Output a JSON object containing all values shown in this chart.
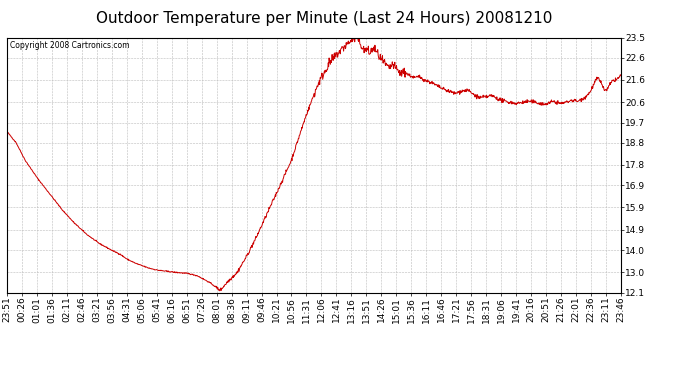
{
  "title": "Outdoor Temperature per Minute (Last 24 Hours) 20081210",
  "copyright": "Copyright 2008 Cartronics.com",
  "line_color": "#cc0000",
  "background_color": "#ffffff",
  "grid_color": "#bbbbbb",
  "ylim": [
    12.1,
    23.5
  ],
  "yticks": [
    12.1,
    13.0,
    14.0,
    14.9,
    15.9,
    16.9,
    17.8,
    18.8,
    19.7,
    20.6,
    21.6,
    22.6,
    23.5
  ],
  "x_tick_labels": [
    "23:51",
    "00:26",
    "01:01",
    "01:36",
    "02:11",
    "02:46",
    "03:21",
    "03:56",
    "04:31",
    "05:06",
    "05:41",
    "06:16",
    "06:51",
    "07:26",
    "08:01",
    "08:36",
    "09:11",
    "09:46",
    "10:21",
    "10:56",
    "11:31",
    "12:06",
    "12:41",
    "13:16",
    "13:51",
    "14:26",
    "15:01",
    "15:36",
    "16:11",
    "16:46",
    "17:21",
    "17:56",
    "18:31",
    "19:06",
    "19:41",
    "20:16",
    "20:51",
    "21:26",
    "22:01",
    "22:36",
    "23:11",
    "23:46"
  ],
  "title_fontsize": 11,
  "tick_fontsize": 6.5,
  "control_points": [
    [
      0.0,
      19.3
    ],
    [
      0.015,
      18.8
    ],
    [
      0.03,
      18.0
    ],
    [
      0.05,
      17.2
    ],
    [
      0.07,
      16.5
    ],
    [
      0.09,
      15.8
    ],
    [
      0.11,
      15.2
    ],
    [
      0.13,
      14.7
    ],
    [
      0.15,
      14.3
    ],
    [
      0.17,
      14.0
    ],
    [
      0.185,
      13.8
    ],
    [
      0.195,
      13.6
    ],
    [
      0.21,
      13.4
    ],
    [
      0.23,
      13.2
    ],
    [
      0.245,
      13.1
    ],
    [
      0.26,
      13.05
    ],
    [
      0.275,
      13.0
    ],
    [
      0.295,
      12.95
    ],
    [
      0.31,
      12.85
    ],
    [
      0.32,
      12.7
    ],
    [
      0.33,
      12.55
    ],
    [
      0.335,
      12.45
    ],
    [
      0.34,
      12.35
    ],
    [
      0.344,
      12.25
    ],
    [
      0.348,
      12.22
    ],
    [
      0.352,
      12.35
    ],
    [
      0.36,
      12.6
    ],
    [
      0.375,
      13.0
    ],
    [
      0.39,
      13.7
    ],
    [
      0.405,
      14.5
    ],
    [
      0.42,
      15.4
    ],
    [
      0.435,
      16.3
    ],
    [
      0.45,
      17.2
    ],
    [
      0.463,
      18.0
    ],
    [
      0.475,
      19.0
    ],
    [
      0.487,
      20.0
    ],
    [
      0.498,
      20.8
    ],
    [
      0.508,
      21.5
    ],
    [
      0.516,
      21.9
    ],
    [
      0.524,
      22.3
    ],
    [
      0.53,
      22.5
    ],
    [
      0.536,
      22.7
    ],
    [
      0.541,
      22.85
    ],
    [
      0.546,
      23.0
    ],
    [
      0.55,
      23.1
    ],
    [
      0.554,
      23.2
    ],
    [
      0.558,
      23.3
    ],
    [
      0.562,
      23.4
    ],
    [
      0.566,
      23.45
    ],
    [
      0.57,
      23.5
    ],
    [
      0.574,
      23.3
    ],
    [
      0.578,
      23.1
    ],
    [
      0.582,
      22.9
    ],
    [
      0.586,
      23.0
    ],
    [
      0.59,
      22.8
    ],
    [
      0.594,
      22.9
    ],
    [
      0.598,
      23.05
    ],
    [
      0.602,
      22.85
    ],
    [
      0.606,
      22.65
    ],
    [
      0.61,
      22.5
    ],
    [
      0.616,
      22.3
    ],
    [
      0.622,
      22.1
    ],
    [
      0.628,
      22.3
    ],
    [
      0.634,
      22.1
    ],
    [
      0.64,
      21.9
    ],
    [
      0.648,
      21.95
    ],
    [
      0.656,
      21.8
    ],
    [
      0.664,
      21.7
    ],
    [
      0.672,
      21.75
    ],
    [
      0.68,
      21.6
    ],
    [
      0.69,
      21.5
    ],
    [
      0.7,
      21.35
    ],
    [
      0.71,
      21.2
    ],
    [
      0.72,
      21.1
    ],
    [
      0.73,
      21.0
    ],
    [
      0.74,
      21.1
    ],
    [
      0.75,
      21.15
    ],
    [
      0.76,
      20.95
    ],
    [
      0.77,
      20.8
    ],
    [
      0.78,
      20.85
    ],
    [
      0.79,
      20.9
    ],
    [
      0.8,
      20.75
    ],
    [
      0.81,
      20.65
    ],
    [
      0.82,
      20.6
    ],
    [
      0.83,
      20.55
    ],
    [
      0.84,
      20.6
    ],
    [
      0.85,
      20.65
    ],
    [
      0.86,
      20.6
    ],
    [
      0.87,
      20.55
    ],
    [
      0.875,
      20.5
    ],
    [
      0.88,
      20.55
    ],
    [
      0.885,
      20.6
    ],
    [
      0.89,
      20.65
    ],
    [
      0.895,
      20.6
    ],
    [
      0.9,
      20.55
    ],
    [
      0.91,
      20.6
    ],
    [
      0.92,
      20.7
    ],
    [
      0.93,
      20.65
    ],
    [
      0.94,
      20.8
    ],
    [
      0.948,
      21.0
    ],
    [
      0.954,
      21.3
    ],
    [
      0.958,
      21.55
    ],
    [
      0.962,
      21.7
    ],
    [
      0.966,
      21.55
    ],
    [
      0.97,
      21.35
    ],
    [
      0.974,
      21.1
    ],
    [
      0.978,
      21.2
    ],
    [
      0.982,
      21.4
    ],
    [
      0.986,
      21.55
    ],
    [
      0.99,
      21.6
    ],
    [
      0.994,
      21.65
    ],
    [
      0.998,
      21.75
    ],
    [
      1.0,
      21.8
    ]
  ]
}
